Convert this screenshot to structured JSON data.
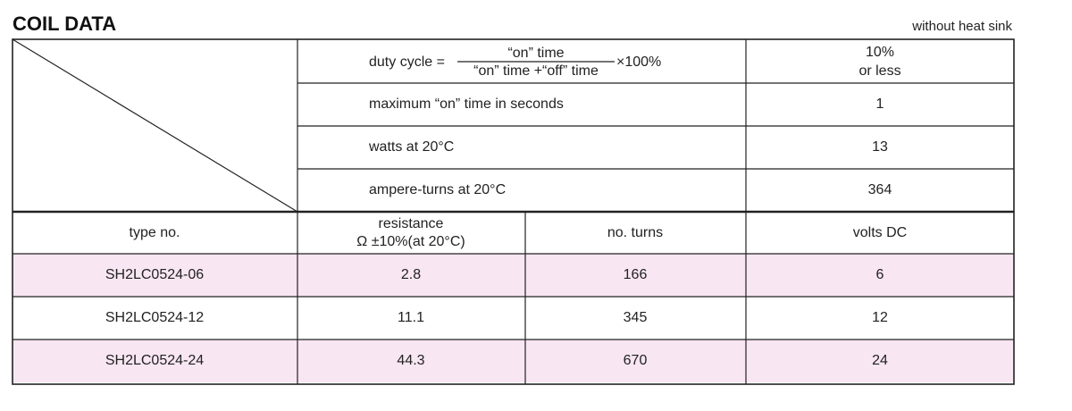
{
  "header": {
    "title": "COIL DATA",
    "note": "without heat sink"
  },
  "conditions": {
    "duty_cycle": {
      "label": "duty cycle =",
      "numerator": "“on” time",
      "denominator": "“on” time +“off” time",
      "multiplier": "×100%",
      "value": [
        "10%",
        "or less"
      ]
    },
    "rows": [
      {
        "label": "maximum “on” time in seconds",
        "value": 1
      },
      {
        "label": "watts at 20°C",
        "value": 13
      },
      {
        "label": "ampere-turns at 20°C",
        "value": 364
      }
    ]
  },
  "table": {
    "columns": [
      "type no.",
      [
        "resistance",
        "Ω ±10%(at 20°C)"
      ],
      "no. turns",
      "volts DC"
    ],
    "rows": [
      [
        "SH2LC0524-06",
        2.8,
        166,
        6
      ],
      [
        "SH2LC0524-12",
        11.1,
        345,
        12
      ],
      [
        "SH2LC0524-24",
        44.3,
        670,
        24
      ]
    ]
  }
}
